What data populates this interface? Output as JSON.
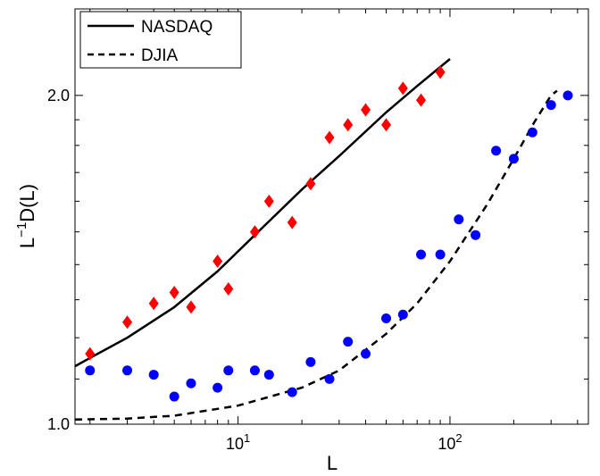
{
  "chart_data": {
    "type": "scatter",
    "xlabel": "L",
    "ylabel": "L^{-1}D(L)",
    "ylabel_parts": {
      "base": "L",
      "sup": "−1",
      "rest": "D(L)"
    },
    "x_scale": "log",
    "y_scale": "log",
    "xlim": [
      1.7,
      450
    ],
    "ylim": [
      1.0,
      2.4
    ],
    "x_ticks": [
      {
        "value": 10,
        "base": "10",
        "exp": "1"
      },
      {
        "value": 100,
        "base": "10",
        "exp": "2"
      }
    ],
    "y_ticks": [
      {
        "value": 1.0,
        "label": "1.0"
      },
      {
        "value": 2.0,
        "label": "2.0"
      }
    ],
    "y_minor_ticks": [
      1.1,
      1.2,
      1.3,
      1.4,
      1.5,
      1.6,
      1.7,
      1.8,
      1.9
    ],
    "grid": false,
    "legend": {
      "placement": "top-left",
      "entries": [
        {
          "label": "NASDAQ",
          "style": "solid"
        },
        {
          "label": "DJIA",
          "style": "dashed"
        }
      ]
    },
    "series": [
      {
        "kind": "points",
        "marker": "diamond",
        "color": "#ff0000",
        "x": [
          2,
          3,
          4,
          5,
          6,
          8,
          9,
          12,
          14,
          18,
          22,
          27,
          33,
          40,
          50,
          60,
          73,
          90
        ],
        "y": [
          1.16,
          1.24,
          1.29,
          1.32,
          1.28,
          1.41,
          1.33,
          1.5,
          1.6,
          1.53,
          1.66,
          1.83,
          1.88,
          1.94,
          1.88,
          2.03,
          1.98,
          2.1
        ]
      },
      {
        "kind": "points",
        "marker": "circle",
        "color": "#0000ff",
        "x": [
          2,
          3,
          4,
          5,
          6,
          8,
          9,
          12,
          14,
          18,
          22,
          27,
          33,
          40,
          50,
          60,
          73,
          90,
          110,
          132,
          165,
          200,
          245,
          300,
          360
        ],
        "y": [
          1.12,
          1.12,
          1.11,
          1.06,
          1.09,
          1.08,
          1.12,
          1.12,
          1.11,
          1.07,
          1.14,
          1.1,
          1.19,
          1.16,
          1.25,
          1.26,
          1.43,
          1.43,
          1.54,
          1.49,
          1.78,
          1.75,
          1.85,
          1.96,
          2.0
        ]
      },
      {
        "kind": "line",
        "name": "NASDAQ",
        "style": "solid",
        "color": "#000000",
        "x": [
          1.7,
          2,
          3,
          5,
          8,
          12,
          20,
          30,
          50,
          70,
          100
        ],
        "y": [
          1.13,
          1.15,
          1.2,
          1.28,
          1.38,
          1.49,
          1.64,
          1.76,
          1.93,
          2.04,
          2.16
        ]
      },
      {
        "kind": "line",
        "name": "DJIA",
        "style": "dashed",
        "color": "#000000",
        "x": [
          1.7,
          3,
          5,
          10,
          20,
          30,
          50,
          70,
          100,
          150,
          200,
          250,
          300,
          320
        ],
        "y": [
          1.01,
          1.012,
          1.018,
          1.04,
          1.08,
          1.12,
          1.21,
          1.29,
          1.41,
          1.59,
          1.75,
          1.89,
          2.0,
          2.02
        ]
      }
    ]
  }
}
